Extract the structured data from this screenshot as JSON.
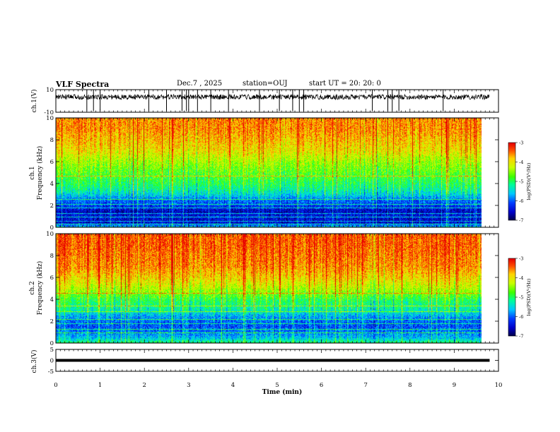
{
  "header": {
    "title": "VLF Spectra",
    "date": "Dec.7 , 2025",
    "station": "station=OUJ",
    "start_ut": "start UT = 20: 20: 0"
  },
  "chart_data": [
    {
      "type": "line",
      "panel": "ch1-waveform",
      "ylabel": "ch.1(V)",
      "ylim": [
        -10,
        10
      ],
      "yticks": [
        "10",
        "-10"
      ],
      "baseline": 3.5,
      "x_end_min": 9.8,
      "spikes_min": [
        0.7,
        0.85,
        1.0,
        2.1,
        2.5,
        2.85,
        2.95,
        3.0,
        3.2,
        3.5,
        3.9,
        4.6,
        5.05,
        5.35,
        5.5,
        5.6,
        7.15,
        7.5,
        7.6,
        7.75,
        8.75
      ]
    },
    {
      "type": "heatmap",
      "panel": "ch1-spectrogram",
      "ylabel": "ch.1\nFrequency (kHz)",
      "ylabel_line1": "ch.1",
      "ylabel_line2": "Frequency (kHz)",
      "ylim": [
        0,
        10
      ],
      "yticks": [
        "0",
        "2",
        "4",
        "6",
        "8",
        "10"
      ],
      "x_end_min": 9.8,
      "colorbar": {
        "label": "log(PSD)(V²/Hz)",
        "range": [
          -7,
          -3
        ],
        "ticks": [
          "-3",
          "-4",
          "-5",
          "-6",
          "-7"
        ]
      },
      "profile_freq_khz": [
        0,
        0.5,
        1.0,
        1.5,
        2.0,
        2.5,
        3.0,
        3.5,
        4.0,
        5.0,
        6.0,
        7.0,
        8.0,
        9.0,
        10.0
      ],
      "profile_log_psd": [
        -5.5,
        -6.6,
        -6.4,
        -6.6,
        -6.2,
        -6.0,
        -5.5,
        -5.2,
        -5.0,
        -4.7,
        -4.4,
        -4.0,
        -3.8,
        -3.6,
        -3.6
      ],
      "tones_khz": [
        0.3,
        0.6,
        1.0,
        1.3,
        1.8,
        2.1,
        2.6,
        4.7
      ]
    },
    {
      "type": "heatmap",
      "panel": "ch2-spectrogram",
      "ylabel": "ch.2\nFrequency (kHz)",
      "ylabel_line1": "ch.2",
      "ylabel_line2": "Frequency (kHz)",
      "ylim": [
        0,
        10
      ],
      "yticks": [
        "0",
        "2",
        "4",
        "6",
        "8",
        "10"
      ],
      "x_end_min": 9.8,
      "colorbar": {
        "label": "log(PSD)(V²/Hz)",
        "range": [
          -7,
          -3
        ],
        "ticks": [
          "-3",
          "-4",
          "-5",
          "-6",
          "-7"
        ]
      },
      "profile_freq_khz": [
        0,
        0.5,
        1.0,
        1.5,
        2.0,
        2.5,
        3.0,
        4.0,
        5.0,
        6.0,
        7.0,
        8.0,
        9.0,
        10.0
      ],
      "profile_log_psd": [
        -5.0,
        -5.6,
        -5.9,
        -6.1,
        -6.0,
        -5.7,
        -5.3,
        -4.9,
        -4.3,
        -3.9,
        -3.6,
        -3.5,
        -3.4,
        -3.4
      ],
      "tones_khz": [
        1.0,
        1.3,
        1.8,
        2.2,
        2.9,
        3.4,
        4.6
      ]
    },
    {
      "type": "line",
      "panel": "ch3-waveform",
      "ylabel": "ch.3(V)",
      "ylim": [
        -5,
        5
      ],
      "yticks": [
        "5",
        "0",
        "-5"
      ],
      "baseline": 0,
      "x_end_min": 9.8,
      "xlabel": "Time (min)",
      "xlim": [
        0,
        10
      ],
      "xticks": [
        "0",
        "1",
        "2",
        "3",
        "4",
        "5",
        "6",
        "7",
        "8",
        "9",
        "10"
      ]
    }
  ]
}
